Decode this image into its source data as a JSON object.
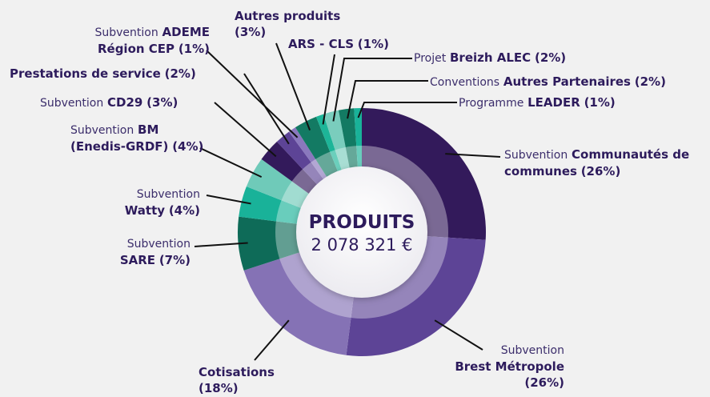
{
  "chart_data": {
    "type": "pie",
    "title": "PRODUITS",
    "subtitle": "2 078 321 €",
    "prefixes": [
      "Subvention",
      "Subvention",
      null,
      "Subvention",
      "Subvention",
      "Subvention",
      "Subvention",
      null,
      "Subvention",
      null,
      null,
      "Projet",
      "Conventions",
      "Programme"
    ],
    "categories": [
      "Communautés de communes",
      "Brest Métropole",
      "Cotisations",
      "SARE",
      "Watty",
      "BM (Enedis-GRDF)",
      "CD29",
      "Prestations de service",
      "ADEME Région CEP",
      "Autres produits",
      "ARS - CLS",
      "Breizh ALEC",
      "Autres Partenaires",
      "LEADER"
    ],
    "values": [
      26,
      26,
      18,
      7,
      4,
      4,
      3,
      2,
      1,
      3,
      1,
      2,
      2,
      1
    ],
    "value_labels": [
      "(26%)",
      "(26%)",
      "(18%)",
      "(7%)",
      "(4%)",
      "(4%)",
      "(3%)",
      "(2%)",
      "(1%)",
      "(3%)",
      "(1%)",
      "(2%)",
      "(2%)",
      "(1%)"
    ],
    "colors": [
      "#331a5b",
      "#5d4496",
      "#8572b5",
      "#0e6b58",
      "#19b299",
      "#6fcab9",
      "#331a5b",
      "#5d4496",
      "#8a78bd",
      "#137a63",
      "#1db598",
      "#7acdbd",
      "#137a63",
      "#19b299"
    ]
  }
}
